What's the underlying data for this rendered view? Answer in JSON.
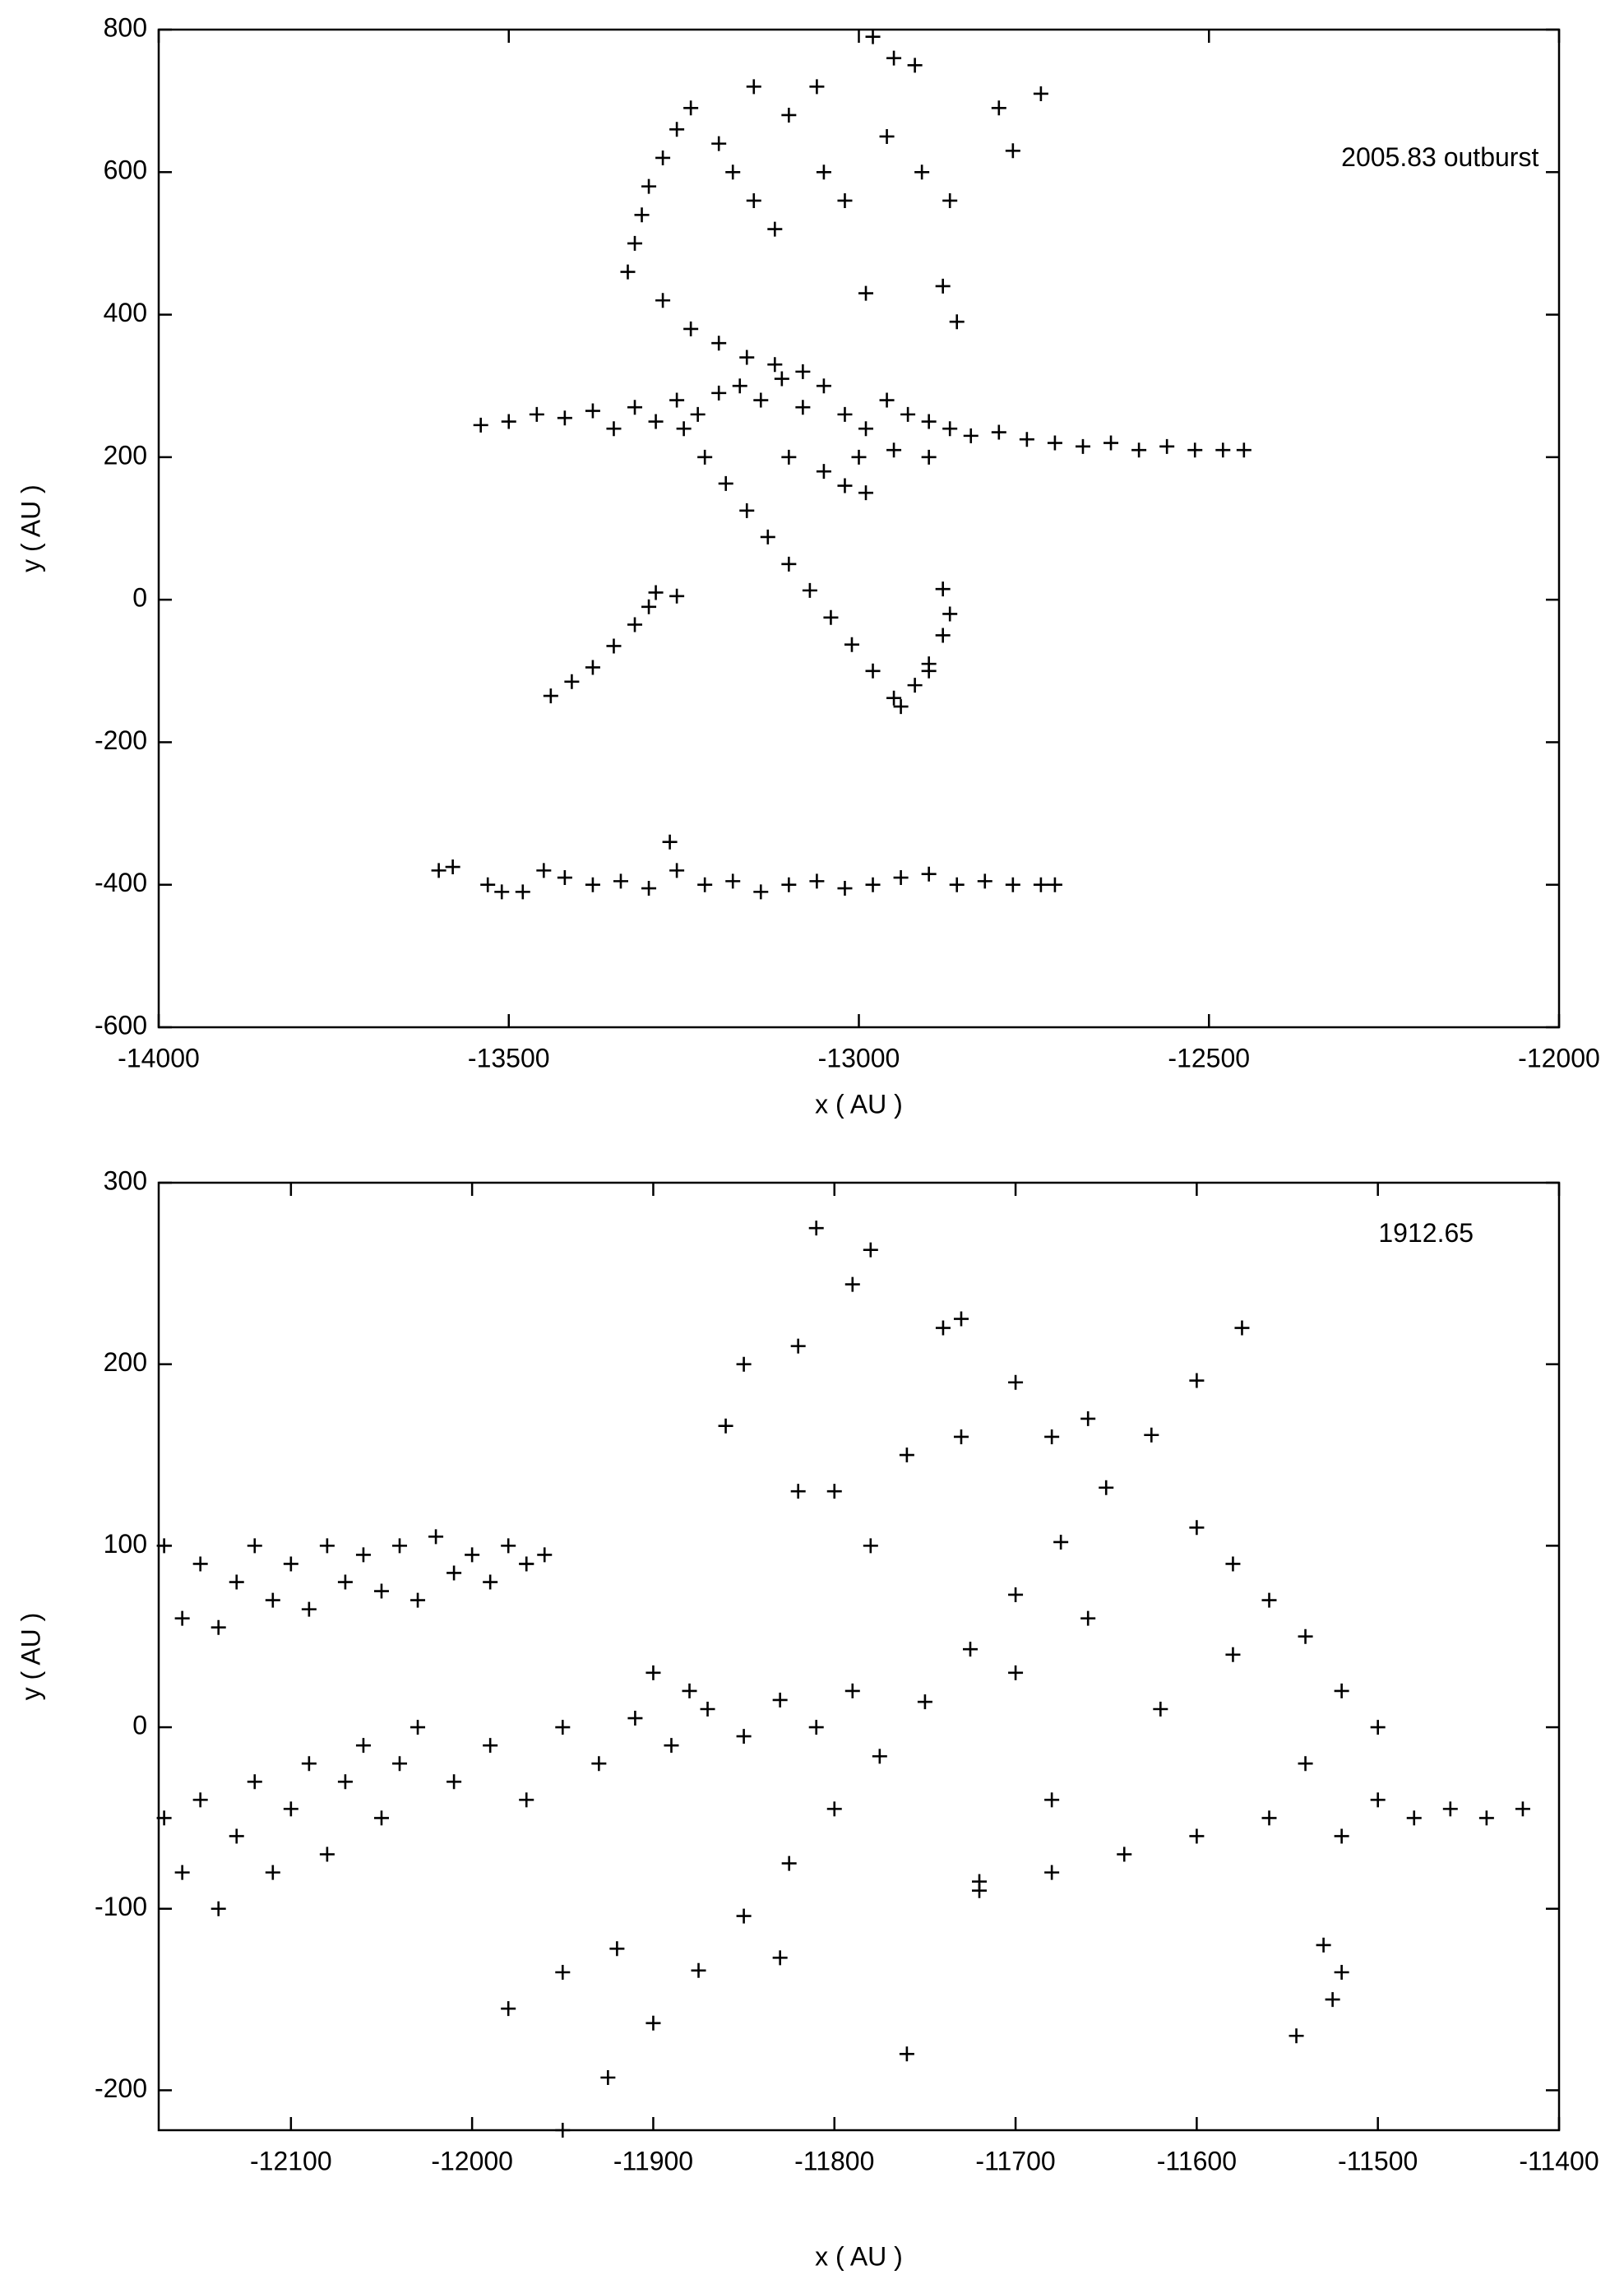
{
  "chart_data": [
    {
      "type": "scatter",
      "xlabel": "x ( AU )",
      "ylabel": "y ( AU )",
      "annotation": "2005.83 outburst",
      "color": "#000000",
      "marker": "+",
      "xlim": [
        -14000,
        -12000
      ],
      "ylim": [
        -600,
        800
      ],
      "xticks": [
        -14000,
        -13500,
        -13000,
        -12500,
        -12000
      ],
      "yticks": [
        -600,
        -400,
        -200,
        0,
        200,
        400,
        600,
        800
      ],
      "x": [
        -13540,
        -13500,
        -13460,
        -13420,
        -13380,
        -13350,
        -13320,
        -13290,
        -13260,
        -13230,
        -13200,
        -13170,
        -13140,
        -13110,
        -13080,
        -13050,
        -13020,
        -12990,
        -12960,
        -12930,
        -12900,
        -12870,
        -12840,
        -12800,
        -12760,
        -12720,
        -12680,
        -12640,
        -12600,
        -12560,
        -12520,
        -12480,
        -12450,
        -13100,
        -13050,
        -13020,
        -12990,
        -13000,
        -12950,
        -12900,
        -13330,
        -13320,
        -13310,
        -13300,
        -13280,
        -13260,
        -13240,
        -13200,
        -13180,
        -13150,
        -13120,
        -13280,
        -13240,
        -13200,
        -13160,
        -13120,
        -13080,
        -13150,
        -13100,
        -13060,
        -12980,
        -12950,
        -12920,
        -12800,
        -12740,
        -12780,
        -12910,
        -12870,
        -12880,
        -12860,
        -12990,
        -13020,
        -13050,
        -12960,
        -13250,
        -13220,
        -13190,
        -13160,
        -13130,
        -13100,
        -13070,
        -13040,
        -13010,
        -12980,
        -12950,
        -12940,
        -13440,
        -13410,
        -13380,
        -13350,
        -13320,
        -13300,
        -13290,
        -13260,
        -12920,
        -12900,
        -12880,
        -12870,
        -12880,
        -12900,
        -13600,
        -13580,
        -13530,
        -13510,
        -13480,
        -13450,
        -13420,
        -13380,
        -13340,
        -13300,
        -13270,
        -13260,
        -13220,
        -13180,
        -13140,
        -13100,
        -13060,
        -13020,
        -12980,
        -12940,
        -12900,
        -12860,
        -12820,
        -12780,
        -12740,
        -12720
      ],
      "y": [
        245,
        250,
        260,
        255,
        265,
        240,
        270,
        250,
        280,
        260,
        290,
        300,
        280,
        310,
        270,
        300,
        260,
        240,
        280,
        260,
        250,
        240,
        230,
        235,
        225,
        220,
        215,
        220,
        210,
        215,
        210,
        210,
        210,
        200,
        180,
        160,
        150,
        200,
        210,
        200,
        460,
        500,
        540,
        580,
        620,
        660,
        690,
        640,
        600,
        560,
        520,
        420,
        380,
        360,
        340,
        330,
        320,
        720,
        680,
        720,
        790,
        760,
        750,
        690,
        710,
        630,
        600,
        560,
        440,
        390,
        430,
        560,
        600,
        650,
        240,
        200,
        163,
        125,
        88,
        50,
        13,
        -25,
        -63,
        -100,
        -138,
        -150,
        -135,
        -115,
        -95,
        -65,
        -35,
        -10,
        10,
        5,
        -120,
        -90,
        -50,
        -20,
        15,
        -100,
        -380,
        -375,
        -400,
        -410,
        -410,
        -380,
        -390,
        -400,
        -395,
        -405,
        -340,
        -380,
        -400,
        -395,
        -410,
        -400,
        -395,
        -405,
        -400,
        -390,
        -385,
        -400,
        -395,
        -400,
        -400,
        -400
      ]
    },
    {
      "type": "scatter",
      "xlabel": "x ( AU )",
      "ylabel": "y ( AU )",
      "annotation": "1912.65",
      "color": "#000000",
      "marker": "+",
      "xlim": [
        -12173,
        -11400
      ],
      "ylim": [
        -222,
        300
      ],
      "xticks": [
        -12100,
        -12000,
        -11900,
        -11800,
        -11700,
        -11600,
        -11500,
        -11400
      ],
      "yticks": [
        -200,
        -100,
        0,
        100,
        200,
        300
      ],
      "x": [
        -12170,
        -12160,
        -12150,
        -12140,
        -12130,
        -12120,
        -12110,
        -12100,
        -12090,
        -12080,
        -12070,
        -12060,
        -12050,
        -12040,
        -12030,
        -12020,
        -12010,
        -12000,
        -11990,
        -11980,
        -11970,
        -11960,
        -12170,
        -12160,
        -12150,
        -12140,
        -12130,
        -12120,
        -12110,
        -12100,
        -12090,
        -12080,
        -12070,
        -12060,
        -12050,
        -12040,
        -12030,
        -12010,
        -11990,
        -11970,
        -11950,
        -11930,
        -11910,
        -11890,
        -11870,
        -11850,
        -11830,
        -11810,
        -11790,
        -11700,
        -11680,
        -11660,
        -11640,
        -11620,
        -11600,
        -11580,
        -11560,
        -11540,
        -11520,
        -11500,
        -11480,
        -11460,
        -11440,
        -11420,
        -11600,
        -11580,
        -11560,
        -11540,
        -11520,
        -11500,
        -11680,
        -11720,
        -11810,
        -11780,
        -11790,
        -11820,
        -11850,
        -11860,
        -11740,
        -11730,
        -11700,
        -11730,
        -11820,
        -11800,
        -11760,
        -11780,
        -11680,
        -11660,
        -11830,
        -11760,
        -11920,
        -11950,
        -11980,
        -11530,
        -11520,
        -11525,
        -11545,
        -11970,
        -11900,
        -11880,
        -11720,
        -11950,
        -11925,
        -11900,
        -11875,
        -11850,
        -11825,
        -11800,
        -11775,
        -11750,
        -11725,
        -11700,
        -11675,
        -11650,
        -11625,
        -11600,
        -11575
      ],
      "y": [
        100,
        60,
        90,
        55,
        80,
        100,
        70,
        90,
        65,
        100,
        80,
        95,
        75,
        100,
        70,
        105,
        85,
        95,
        80,
        100,
        90,
        95,
        -50,
        -80,
        -40,
        -100,
        -60,
        -30,
        -80,
        -45,
        -20,
        -70,
        -30,
        -10,
        -50,
        -20,
        0,
        -30,
        -10,
        -40,
        0,
        -20,
        5,
        -10,
        10,
        -5,
        15,
        0,
        20,
        30,
        -40,
        60,
        -70,
        10,
        -60,
        40,
        -50,
        -20,
        -60,
        -40,
        -50,
        -45,
        -50,
        -45,
        110,
        90,
        70,
        50,
        20,
        0,
        -80,
        -85,
        275,
        263,
        244,
        210,
        200,
        166,
        220,
        225,
        190,
        160,
        130,
        130,
        150,
        100,
        160,
        170,
        -127,
        -180,
        -122,
        -135,
        -155,
        -120,
        -135,
        -150,
        -170,
        90,
        30,
        20,
        -90,
        -222,
        -193,
        -163,
        -134,
        -104,
        -75,
        -45,
        -16,
        14,
        43,
        73,
        102,
        132,
        161,
        191,
        220
      ]
    }
  ]
}
